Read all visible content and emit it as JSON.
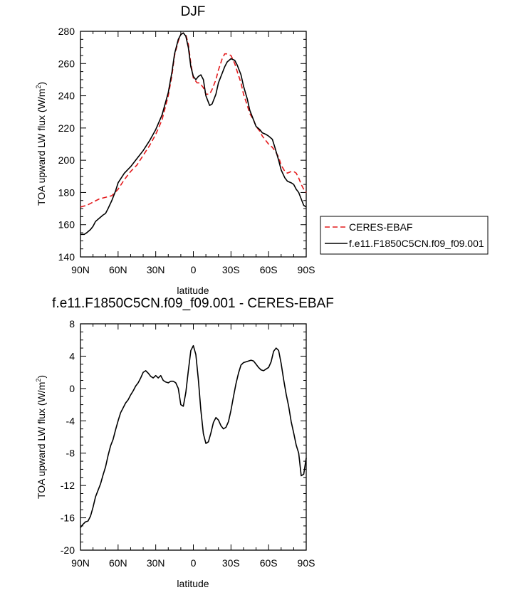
{
  "chart_data": [
    {
      "type": "line",
      "title": "DJF",
      "xlabel": "latitude",
      "ylabel": "TOA upward LW flux (W/m",
      "ylabel_sup": "2",
      "ylabel_close": ")",
      "xlim": [
        90,
        -90
      ],
      "ylim": [
        140,
        280
      ],
      "x_ticks": [
        90,
        60,
        30,
        0,
        -30,
        -60,
        -90
      ],
      "x_tick_labels": [
        "90N",
        "60N",
        "30N",
        "0",
        "30S",
        "60S",
        "90S"
      ],
      "y_ticks": [
        140,
        160,
        180,
        200,
        220,
        240,
        260,
        280
      ],
      "y_tick_labels": [
        "140",
        "160",
        "180",
        "200",
        "220",
        "240",
        "260",
        "280"
      ],
      "grid": false,
      "legend_position": "right",
      "series": [
        {
          "name": "CERES-EBAF",
          "color": "#e41a1c",
          "dash": "dashed",
          "x": [
            90,
            85,
            80,
            75,
            70,
            65,
            60,
            55,
            50,
            45,
            40,
            35,
            30,
            25,
            20,
            17,
            15,
            12,
            10,
            8,
            6,
            4,
            2,
            0,
            -3,
            -5,
            -8,
            -10,
            -13,
            -15,
            -18,
            -20,
            -23,
            -25,
            -27,
            -30,
            -33,
            -35,
            -38,
            -40,
            -43,
            -45,
            -48,
            -50,
            -53,
            -55,
            -58,
            -60,
            -63,
            -65,
            -68,
            -70,
            -73,
            -75,
            -78,
            -80,
            -82,
            -84,
            -86,
            -88,
            -90
          ],
          "y": [
            171,
            172,
            174,
            176,
            177,
            178,
            182,
            188,
            193,
            197,
            203,
            209,
            216,
            225,
            240,
            253,
            265,
            274,
            278,
            279,
            278,
            272,
            260,
            251,
            248,
            248,
            245,
            241,
            241,
            244,
            250,
            256,
            263,
            266,
            266,
            265,
            260,
            255,
            248,
            241,
            234,
            229,
            225,
            221,
            218,
            215,
            212,
            210,
            208,
            206,
            202,
            197,
            193,
            192,
            193,
            193,
            192,
            189,
            185,
            182,
            180
          ]
        },
        {
          "name": "f.e11.F1850C5CN.f09_f09.001",
          "color": "#000000",
          "dash": "solid",
          "x": [
            90,
            87,
            85,
            82,
            80,
            78,
            75,
            72,
            70,
            68,
            65,
            62,
            60,
            55,
            50,
            45,
            40,
            35,
            30,
            25,
            20,
            17,
            15,
            12,
            10,
            8,
            6,
            4,
            2,
            0,
            -2,
            -4,
            -6,
            -8,
            -10,
            -13,
            -15,
            -18,
            -20,
            -23,
            -25,
            -27,
            -30,
            -33,
            -35,
            -38,
            -40,
            -43,
            -45,
            -48,
            -50,
            -53,
            -55,
            -58,
            -60,
            -63,
            -65,
            -68,
            -70,
            -73,
            -75,
            -78,
            -80,
            -82,
            -84,
            -86,
            -88,
            -90
          ],
          "y": [
            154,
            154,
            155,
            157,
            159,
            162,
            164,
            166,
            167,
            170,
            175,
            181,
            186,
            192,
            196,
            201,
            206,
            212,
            219,
            228,
            242,
            255,
            266,
            275,
            278,
            279,
            277,
            270,
            258,
            252,
            250,
            252,
            253,
            250,
            240,
            234,
            235,
            241,
            248,
            254,
            258,
            261,
            263,
            262,
            259,
            253,
            246,
            238,
            231,
            225,
            221,
            219,
            217,
            216,
            215,
            213,
            208,
            200,
            194,
            189,
            187,
            186,
            185,
            182,
            180,
            176,
            172,
            171
          ]
        }
      ]
    },
    {
      "type": "line",
      "title": "f.e11.F1850C5CN.f09_f09.001 - CERES-EBAF",
      "xlabel": "latitude",
      "ylabel": "TOA upward LW flux (W/m",
      "ylabel_sup": "2",
      "ylabel_close": ")",
      "xlim": [
        90,
        -90
      ],
      "ylim": [
        -20,
        8
      ],
      "x_ticks": [
        90,
        60,
        30,
        0,
        -30,
        -60,
        -90
      ],
      "x_tick_labels": [
        "90N",
        "60N",
        "30N",
        "0",
        "30S",
        "60S",
        "90S"
      ],
      "y_ticks": [
        -20,
        -16,
        -12,
        -8,
        -4,
        0,
        4,
        8
      ],
      "y_tick_labels": [
        "-20",
        "-16",
        "-12",
        "-8",
        "-4",
        "0",
        "4",
        "8"
      ],
      "grid": false,
      "series": [
        {
          "color": "#000000",
          "dash": "solid",
          "x": [
            90,
            88,
            86,
            84,
            82,
            80,
            78,
            76,
            74,
            72,
            70,
            68,
            66,
            64,
            62,
            60,
            58,
            56,
            54,
            52,
            50,
            48,
            46,
            44,
            42,
            40,
            38,
            36,
            34,
            32,
            30,
            28,
            26,
            24,
            22,
            20,
            18,
            16,
            14,
            12,
            10,
            8,
            6,
            4,
            2,
            0,
            -2,
            -4,
            -6,
            -8,
            -10,
            -12,
            -14,
            -16,
            -18,
            -20,
            -22,
            -24,
            -26,
            -28,
            -30,
            -32,
            -34,
            -36,
            -38,
            -40,
            -42,
            -44,
            -46,
            -48,
            -50,
            -52,
            -54,
            -56,
            -58,
            -60,
            -62,
            -64,
            -66,
            -68,
            -70,
            -72,
            -74,
            -76,
            -78,
            -80,
            -82,
            -84,
            -86,
            -88,
            -90
          ],
          "y": [
            -17.2,
            -16.8,
            -16.5,
            -16.4,
            -15.8,
            -14.7,
            -13.4,
            -12.6,
            -11.8,
            -10.7,
            -9.7,
            -8.3,
            -7.1,
            -6.3,
            -5.1,
            -4.0,
            -3.0,
            -2.4,
            -1.8,
            -1.4,
            -0.8,
            -0.3,
            0.3,
            0.7,
            1.3,
            2.0,
            2.2,
            1.9,
            1.5,
            1.3,
            1.6,
            1.3,
            1.6,
            1.0,
            0.8,
            0.7,
            0.9,
            0.9,
            0.7,
            0.0,
            -2.0,
            -2.2,
            -0.5,
            2.2,
            4.7,
            5.3,
            4.2,
            1.1,
            -2.7,
            -5.6,
            -6.8,
            -6.6,
            -5.5,
            -4.2,
            -3.6,
            -3.9,
            -4.6,
            -5.0,
            -4.8,
            -4.1,
            -2.7,
            -1.0,
            0.6,
            1.9,
            2.9,
            3.2,
            3.3,
            3.4,
            3.5,
            3.4,
            3.0,
            2.6,
            2.3,
            2.2,
            2.4,
            2.6,
            3.3,
            4.6,
            5.0,
            4.7,
            3.1,
            1.1,
            -0.7,
            -2.2,
            -4.1,
            -5.5,
            -7.0,
            -8.0,
            -10.8,
            -10.6,
            -8.6
          ]
        }
      ]
    }
  ]
}
